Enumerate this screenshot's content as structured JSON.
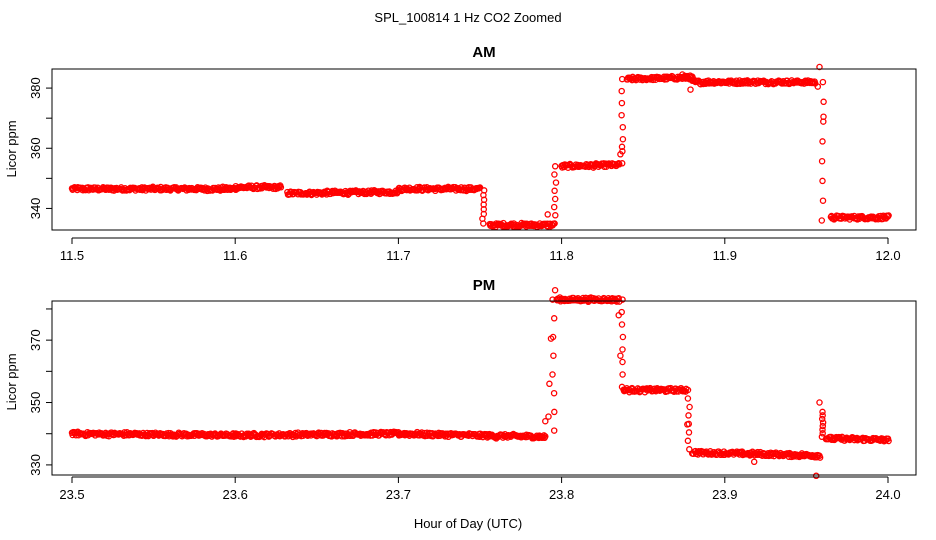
{
  "figure": {
    "title": "SPL_100814  1 Hz CO2 Zoomed",
    "xlabel": "Hour of Day (UTC)"
  },
  "colors": {
    "points": "#ff0000",
    "axis": "#000000"
  },
  "chart_data": [
    {
      "type": "scatter",
      "title": "AM",
      "xlabel": "Hour of Day (UTC)",
      "ylabel": "Licor ppm",
      "xlim": [
        11.5,
        12.0
      ],
      "ylim": [
        332,
        390
      ],
      "xticks": [
        11.5,
        11.6,
        11.7,
        11.8,
        11.9,
        12.0
      ],
      "xtick_labels": [
        "11.5",
        "11.6",
        "11.7",
        "11.8",
        "11.9",
        "12.0"
      ],
      "yticks": [
        340,
        350,
        360,
        370,
        380
      ],
      "ytick_labels": [
        "340",
        "360",
        "380"
      ],
      "ytick_label_values": [
        340,
        360,
        380
      ],
      "grid": false,
      "series": [
        {
          "marker": "open-circle",
          "segments": [
            {
              "x": [
                11.5,
                11.6
              ],
              "y": [
                346.5,
                346.5
              ]
            },
            {
              "x": [
                11.6,
                11.628
              ],
              "y": [
                347.0,
                347.0
              ]
            },
            {
              "x": [
                11.632,
                11.7
              ],
              "y": [
                345.0,
                345.5
              ]
            },
            {
              "x": [
                11.7,
                11.75
              ],
              "y": [
                346.5,
                346.5
              ]
            },
            {
              "x": [
                11.756,
                11.795
              ],
              "y": [
                334.5,
                334.5
              ]
            },
            {
              "x": [
                11.8,
                11.835
              ],
              "y": [
                354.0,
                354.5
              ]
            },
            {
              "x": [
                11.84,
                11.88
              ],
              "y": [
                383.0,
                383.5
              ]
            },
            {
              "x": [
                11.88,
                11.955
              ],
              "y": [
                382.0,
                382.0
              ]
            },
            {
              "x": [
                11.965,
                12.0
              ],
              "y": [
                337.0,
                337.0
              ]
            }
          ],
          "transitions": [
            {
              "x": 11.752,
              "y": [
                346,
                335
              ]
            },
            {
              "x": 11.796,
              "y": [
                335,
                354
              ]
            },
            {
              "x": 11.837,
              "y": [
                355,
                383
              ]
            },
            {
              "x": 11.96,
              "y": [
                382,
                336
              ]
            }
          ],
          "points": [
            {
              "x": 11.874,
              "y": 384.5
            },
            {
              "x": 11.877,
              "y": 384.0
            },
            {
              "x": 11.879,
              "y": 379.5
            },
            {
              "x": 11.958,
              "y": 387.0
            },
            {
              "x": 11.957,
              "y": 380.5
            },
            {
              "x": 11.836,
              "y": 358.0
            },
            {
              "x": 11.837,
              "y": 360.5
            },
            {
              "x": 11.9605,
              "y": 370.5
            },
            {
              "x": 11.7915,
              "y": 338.0
            }
          ]
        }
      ]
    },
    {
      "type": "scatter",
      "title": "PM",
      "xlabel": "Hour of Day (UTC)",
      "ylabel": "Licor ppm",
      "xlim": [
        23.5,
        24.0
      ],
      "ylim": [
        325,
        388
      ],
      "xticks": [
        23.5,
        23.6,
        23.7,
        23.8,
        23.9,
        24.0
      ],
      "xtick_labels": [
        "23.5",
        "23.6",
        "23.7",
        "23.8",
        "23.9",
        "24.0"
      ],
      "yticks": [
        330,
        340,
        350,
        360,
        370,
        380
      ],
      "ytick_labels": [
        "330",
        "350",
        "370"
      ],
      "ytick_label_values": [
        330,
        350,
        370
      ],
      "grid": false,
      "series": [
        {
          "marker": "open-circle",
          "segments": [
            {
              "x": [
                23.5,
                23.6
              ],
              "y": [
                340.0,
                339.5
              ]
            },
            {
              "x": [
                23.6,
                23.7
              ],
              "y": [
                339.5,
                340.0
              ]
            },
            {
              "x": [
                23.7,
                23.79
              ],
              "y": [
                340.0,
                339.0
              ]
            },
            {
              "x": [
                23.797,
                23.835
              ],
              "y": [
                383.0,
                383.0
              ]
            },
            {
              "x": [
                23.838,
                23.876
              ],
              "y": [
                354.0,
                354.0
              ]
            },
            {
              "x": [
                23.88,
                23.958
              ],
              "y": [
                334.0,
                333.0
              ]
            },
            {
              "x": [
                23.962,
                24.0
              ],
              "y": [
                338.5,
                338.0
              ]
            }
          ],
          "transitions": [
            {
              "x": 23.795,
              "y": [
                341,
                383
              ]
            },
            {
              "x": 23.837,
              "y": [
                383,
                355
              ]
            },
            {
              "x": 23.878,
              "y": [
                354,
                335
              ]
            },
            {
              "x": 23.96,
              "y": [
                347,
                339
              ]
            }
          ],
          "points": [
            {
              "x": 23.796,
              "y": 386.0
            },
            {
              "x": 23.835,
              "y": 378.0
            },
            {
              "x": 23.956,
              "y": 326.5
            },
            {
              "x": 23.918,
              "y": 331.0
            },
            {
              "x": 23.79,
              "y": 344.0
            },
            {
              "x": 23.792,
              "y": 345.5
            },
            {
              "x": 23.7935,
              "y": 370.5
            },
            {
              "x": 23.7925,
              "y": 356.0
            },
            {
              "x": 23.958,
              "y": 350.0
            },
            {
              "x": 23.836,
              "y": 365.0
            },
            {
              "x": 23.877,
              "y": 343.0
            },
            {
              "x": 23.76,
              "y": 338.5
            }
          ]
        }
      ]
    }
  ]
}
